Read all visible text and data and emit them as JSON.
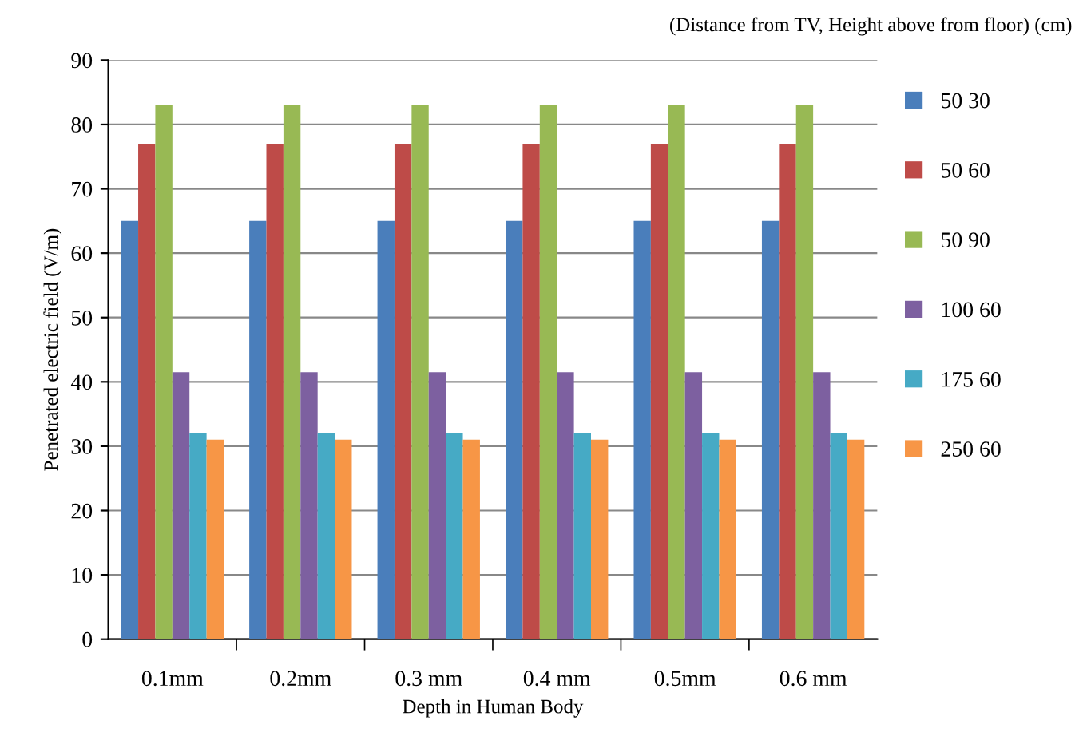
{
  "chart_data": {
    "type": "bar",
    "xlabel": "Depth in Human Body",
    "ylabel": "Penetrated electric field (V/m)",
    "legend_title": "(Distance from TV, Height above from floor) (cm)",
    "categories": [
      "0.1mm",
      "0.2mm",
      "0.3 mm",
      "0.4 mm",
      "0.5mm",
      "0.6 mm"
    ],
    "series": [
      {
        "name": "50 30",
        "color": "#4a7ebb",
        "values": [
          65,
          65,
          65,
          65,
          65,
          65
        ]
      },
      {
        "name": "50 60",
        "color": "#be4b48",
        "values": [
          77,
          77,
          77,
          77,
          77,
          77
        ]
      },
      {
        "name": "50 90",
        "color": "#98b954",
        "values": [
          83,
          83,
          83,
          83,
          83,
          83
        ]
      },
      {
        "name": "100 60",
        "color": "#7d60a0",
        "values": [
          41.5,
          41.5,
          41.5,
          41.5,
          41.5,
          41.5
        ]
      },
      {
        "name": "175 60",
        "color": "#46aac5",
        "values": [
          32,
          32,
          32,
          32,
          32,
          32
        ]
      },
      {
        "name": "250 60",
        "color": "#f79646",
        "values": [
          31,
          31,
          31,
          31,
          31,
          31
        ]
      }
    ],
    "ylim": [
      0,
      90
    ],
    "yticks": [
      0,
      10,
      20,
      30,
      40,
      50,
      60,
      70,
      80,
      90
    ],
    "grid": "y",
    "legend": "right"
  }
}
